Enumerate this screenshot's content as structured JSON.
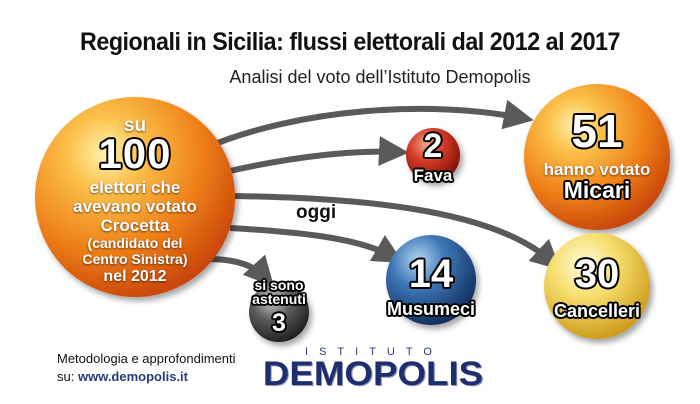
{
  "title": "Regionali in Sicilia: flussi elettorali dal 2012 al 2017",
  "subtitle": "Analisi del voto dell’Istituto Demopolis",
  "source": {
    "su": "su",
    "number": "100",
    "lines": [
      "elettori che",
      "avevano votato",
      "Crocetta",
      "(candidato del",
      "Centro Sinistra)",
      "nel 2012"
    ]
  },
  "oggi": "oggi",
  "destinations": {
    "micari": {
      "value": "51",
      "line1": "hanno votato",
      "line2": "Micari"
    },
    "fava": {
      "value": "2",
      "label": "Fava"
    },
    "cancelleri": {
      "value": "30",
      "label": "Cancelleri"
    },
    "musumeci": {
      "value": "14",
      "label": "Musumeci"
    },
    "astenuti": {
      "value": "3",
      "line1": "si sono",
      "line2": "astenuti"
    }
  },
  "footer": {
    "methodology": "Metodologia e approfondimenti",
    "su_label": "su:",
    "url": "www.demopolis.it"
  },
  "logo": {
    "top": "ISTITUTO",
    "main": "DEMOPOLIS"
  },
  "colors": {
    "orange": "#f08a1e",
    "red": "#c0241b",
    "blue": "#1f3f7a",
    "yellow": "#f3d24a",
    "gray": "#444444",
    "arrow": "#5a5a5a",
    "brand": "#1f2f6e"
  }
}
